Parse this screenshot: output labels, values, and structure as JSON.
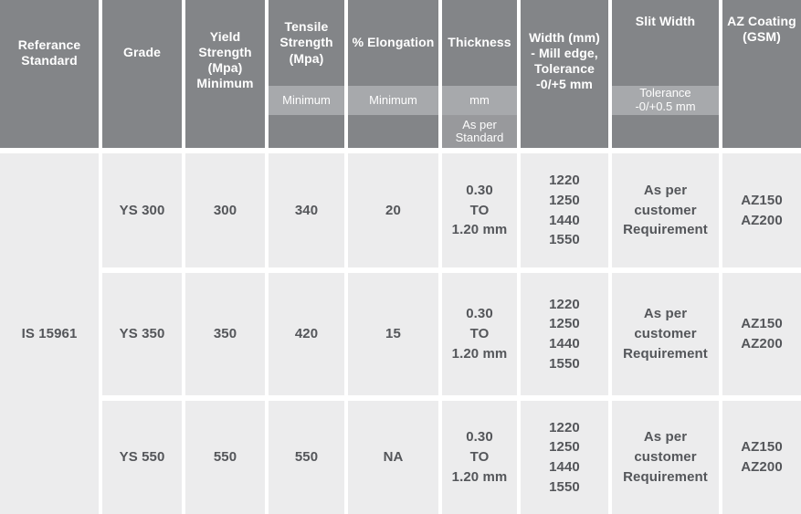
{
  "colors": {
    "header_bg": "#838588",
    "header_band_bg": "#a7a9ac",
    "header_band2_bg": "#98999c",
    "body_cell_bg": "#ececed",
    "body_text": "#54565a",
    "header_text": "#ffffff",
    "gap": "#ffffff"
  },
  "table": {
    "columns": [
      {
        "id": "reference",
        "label": "Referance\nStandard"
      },
      {
        "id": "grade",
        "label": "Grade"
      },
      {
        "id": "yield",
        "label": "Yield\nStrength\n(Mpa)\nMinimum"
      },
      {
        "id": "tensile",
        "label": "Tensile\nStrength\n(Mpa)",
        "band": "Minimum"
      },
      {
        "id": "elongation",
        "label": "% Elongation",
        "band": "Minimum"
      },
      {
        "id": "thickness",
        "label": "Thickness",
        "band": "mm",
        "band2": "As per\nStandard"
      },
      {
        "id": "width",
        "label": "Width (mm)\n- Mill edge,\nTolerance\n-0/+5 mm"
      },
      {
        "id": "slit",
        "label": "Slit Width",
        "band": "Tolerance\n-0/+0.5 mm"
      },
      {
        "id": "az",
        "label": "AZ Coating\n(GSM)"
      }
    ],
    "reference_standard": "IS 15961",
    "rows": [
      {
        "grade": "YS 300",
        "yield": "300",
        "tensile": "340",
        "elongation": "20",
        "thickness": "0.30\nTO\n1.20 mm",
        "width": "1220\n1250\n1440\n1550",
        "slit": "As per\ncustomer\nRequirement",
        "az": "AZ150\nAZ200"
      },
      {
        "grade": "YS 350",
        "yield": "350",
        "tensile": "420",
        "elongation": "15",
        "thickness": "0.30\nTO\n1.20 mm",
        "width": "1220\n1250\n1440\n1550",
        "slit": "As per\ncustomer\nRequirement",
        "az": "AZ150\nAZ200"
      },
      {
        "grade": "YS 550",
        "yield": "550",
        "tensile": "550",
        "elongation": "NA",
        "thickness": "0.30\nTO\n1.20 mm",
        "width": "1220\n1250\n1440\n1550",
        "slit": "As per\ncustomer\nRequirement",
        "az": "AZ150\nAZ200"
      }
    ]
  }
}
